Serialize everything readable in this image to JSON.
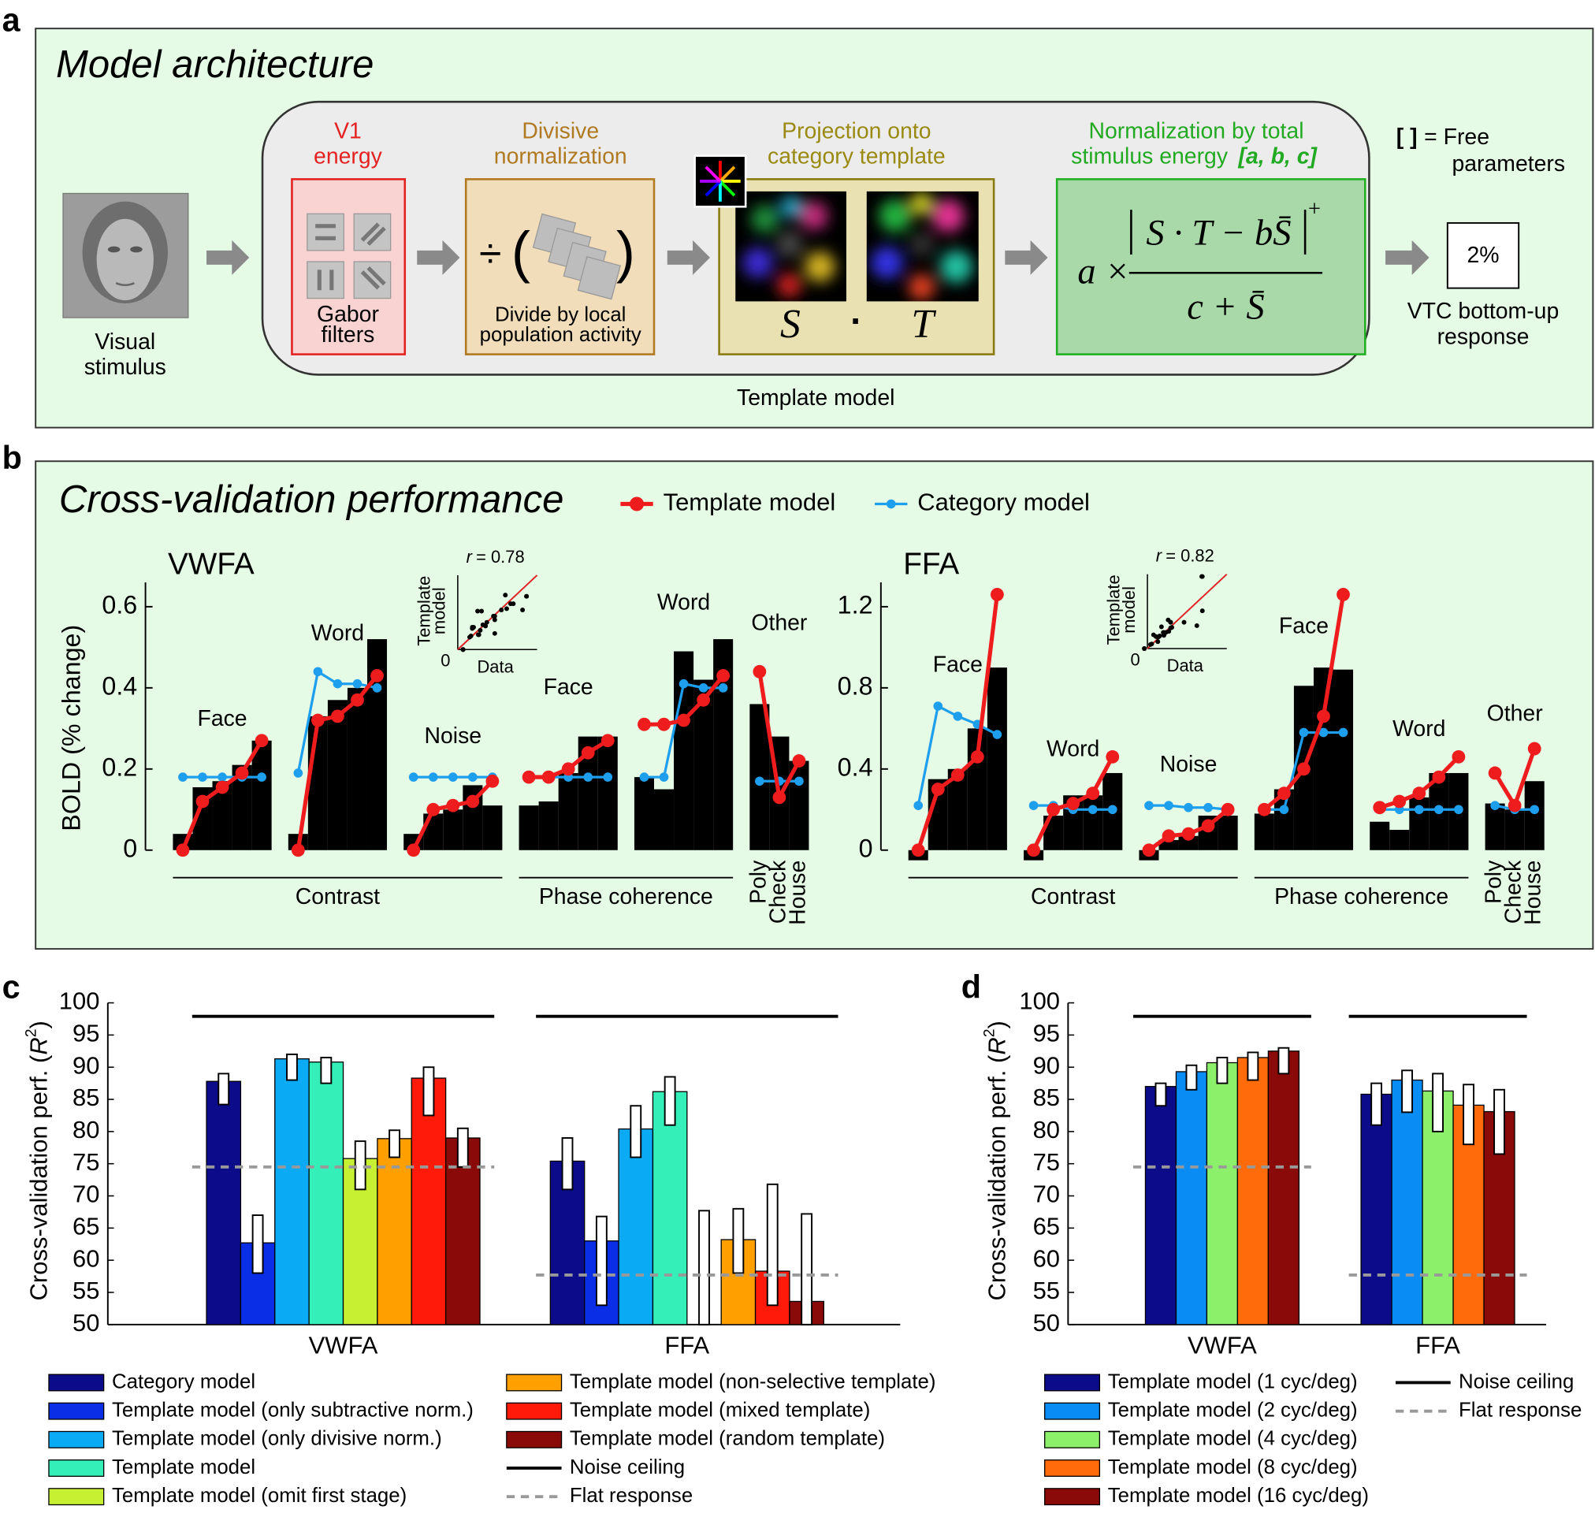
{
  "diagram": {
    "label": "a",
    "title": "Model architecture",
    "stimulus": [
      "Visual",
      "stimulus"
    ],
    "model_label": "Template model",
    "stages": [
      {
        "title": [
          "V1",
          "energy"
        ],
        "caption": [
          "Gabor",
          "filters"
        ]
      },
      {
        "title": [
          "Divisive",
          "normalization"
        ],
        "symbol": "÷",
        "open": "(",
        "close": ")",
        "caption": [
          "Divide by local",
          "population activity"
        ]
      },
      {
        "title": [
          "Projection onto",
          "category template"
        ],
        "operands": [
          "S",
          "·",
          "T"
        ]
      },
      {
        "title": [
          "Normalization by total",
          "stimulus energy"
        ],
        "params": "[a, b, c]",
        "formula": {
          "lead": "a ×",
          "numerator": "S · T − bS̄",
          "sup": "+",
          "denominator": "c + S̄"
        }
      }
    ],
    "free_params": {
      "bracket": "[ ]",
      "text": "= Free",
      "text2": "parameters"
    },
    "output": {
      "value": "2%",
      "caption": [
        "VTC bottom-up",
        "response"
      ]
    }
  },
  "panel_b": {
    "label": "b",
    "title": "Cross-validation performance",
    "legend": [
      {
        "name": "Template model",
        "color": "#ee1c1c"
      },
      {
        "name": "Category model",
        "color": "#1e9fee"
      }
    ]
  },
  "chart_data": [
    {
      "type": "bar-line",
      "title": "VWFA",
      "ylabel": "BOLD (% change)",
      "ylim": [
        0,
        0.66
      ],
      "yticks": [
        0,
        0.2,
        0.4,
        0.6
      ],
      "inset": {
        "xlim": [
          0,
          0.6
        ],
        "ylim": [
          0,
          0.6
        ],
        "xlabel": "Data",
        "ylabel": [
          "Template",
          "model"
        ],
        "origin_label": "0",
        "r_symbol": "r",
        "r_value": "= 0.78"
      },
      "conditions": [
        {
          "label": "Contrast",
          "groups": [
            {
              "label": "Face",
              "bars": [
                0.04,
                0.155,
                0.17,
                0.21,
                0.27
              ],
              "template": [
                0,
                0.12,
                0.155,
                0.19,
                0.27
              ],
              "category": [
                0.18,
                0.18,
                0.18,
                0.18,
                0.18
              ]
            },
            {
              "label": "Word",
              "bars": [
                0.04,
                0.33,
                0.37,
                0.4,
                0.52
              ],
              "template": [
                0,
                0.32,
                0.33,
                0.37,
                0.43
              ],
              "category": [
                0.19,
                0.44,
                0.41,
                0.41,
                0.4
              ]
            },
            {
              "label": "Noise",
              "bars": [
                0.04,
                0.09,
                0.1,
                0.16,
                0.11
              ],
              "template": [
                0,
                0.1,
                0.11,
                0.12,
                0.17
              ],
              "category": [
                0.18,
                0.18,
                0.18,
                0.18,
                0.18
              ]
            }
          ]
        },
        {
          "label": "Phase coherence",
          "groups": [
            {
              "label": "Face",
              "bars": [
                0.11,
                0.12,
                0.19,
                0.28,
                0.28
              ],
              "template": [
                0.18,
                0.18,
                0.2,
                0.24,
                0.27
              ],
              "category": [
                0.18,
                0.18,
                0.18,
                0.18,
                0.18
              ]
            },
            {
              "label": "Word",
              "bars": [
                0.18,
                0.15,
                0.49,
                0.42,
                0.52
              ],
              "template": [
                0.31,
                0.31,
                0.32,
                0.37,
                0.43
              ],
              "category": [
                0.18,
                0.18,
                0.41,
                0.4,
                0.4
              ]
            }
          ]
        },
        {
          "labels": [
            "Poly",
            "Check",
            "House"
          ],
          "groups": [
            {
              "label": "Other",
              "bars": [
                0.36,
                0.28,
                0.22
              ],
              "template": [
                0.44,
                0.13,
                0.22
              ],
              "category": [
                0.17,
                0.17,
                0.17
              ]
            }
          ]
        }
      ]
    },
    {
      "type": "bar-line",
      "title": "FFA",
      "ylim": [
        0,
        1.32
      ],
      "yticks": [
        0,
        0.4,
        0.8,
        1.2
      ],
      "inset": {
        "xlim": [
          0,
          1.3
        ],
        "ylim": [
          0,
          1.3
        ],
        "xlabel": "Data",
        "ylabel": [
          "Template",
          "model"
        ],
        "origin_label": "0",
        "r_symbol": "r",
        "r_value": "= 0.82"
      },
      "conditions": [
        {
          "label": "Contrast",
          "groups": [
            {
              "label": "Face",
              "bars": [
                -0.05,
                0.35,
                0.4,
                0.6,
                0.9
              ],
              "template": [
                0,
                0.3,
                0.37,
                0.46,
                1.26
              ],
              "category": [
                0.22,
                0.71,
                0.66,
                0.62,
                0.57
              ]
            },
            {
              "label": "Word",
              "bars": [
                -0.05,
                0.17,
                0.27,
                0.27,
                0.38
              ],
              "template": [
                0,
                0.2,
                0.23,
                0.28,
                0.46
              ],
              "category": [
                0.22,
                0.22,
                0.2,
                0.2,
                0.2
              ]
            },
            {
              "label": "Noise",
              "bars": [
                -0.05,
                0.05,
                0.07,
                0.17,
                0.17
              ],
              "template": [
                0,
                0.07,
                0.08,
                0.12,
                0.2
              ],
              "category": [
                0.22,
                0.22,
                0.21,
                0.21,
                0.2
              ]
            }
          ]
        },
        {
          "label": "Phase coherence",
          "groups": [
            {
              "label": "Face",
              "bars": [
                0.18,
                0.3,
                0.81,
                0.9,
                0.89
              ],
              "template": [
                0.2,
                0.28,
                0.4,
                0.66,
                1.26
              ],
              "category": [
                0.2,
                0.2,
                0.58,
                0.58,
                0.58
              ]
            },
            {
              "label": "Word",
              "bars": [
                0.14,
                0.1,
                0.26,
                0.38,
                0.38
              ],
              "template": [
                0.21,
                0.24,
                0.28,
                0.36,
                0.46
              ],
              "category": [
                0.2,
                0.2,
                0.2,
                0.2,
                0.2
              ]
            }
          ]
        },
        {
          "labels": [
            "Poly",
            "Check",
            "House"
          ],
          "groups": [
            {
              "label": "Other",
              "bars": [
                0.23,
                0.2,
                0.34
              ],
              "template": [
                0.38,
                0.22,
                0.5
              ],
              "category": [
                0.22,
                0.2,
                0.2
              ]
            }
          ]
        }
      ]
    },
    {
      "type": "bar",
      "panel_label": "c",
      "ylabel": {
        "text": "Cross-validation perf. (",
        "symbol": "R",
        "sup": "2",
        "close": ")"
      },
      "ylim": [
        50,
        100
      ],
      "yticks": [
        50,
        55,
        60,
        65,
        70,
        75,
        80,
        85,
        90,
        95,
        100
      ],
      "categories": [
        "VWFA",
        "FFA"
      ],
      "series": [
        {
          "name": "Category model",
          "color": "#0c0c8a",
          "values": [
            87.8,
            75.4
          ],
          "intervals": [
            [
              84.2,
              89
            ],
            [
              71,
              79
            ]
          ]
        },
        {
          "name": "Template model (only subtractive norm.)",
          "color": "#0a2ee6",
          "values": [
            62.7,
            63.0
          ],
          "intervals": [
            [
              58,
              67
            ],
            [
              53,
              66.8
            ]
          ]
        },
        {
          "name": "Template model (only divisive norm.)",
          "color": "#0aaaf5",
          "values": [
            91.3,
            80.4
          ],
          "intervals": [
            [
              88,
              92
            ],
            [
              76,
              84
            ]
          ]
        },
        {
          "name": "Template model",
          "color": "#34f0b8",
          "values": [
            90.8,
            86.2
          ],
          "intervals": [
            [
              87.5,
              91.5
            ],
            [
              81,
              88.5
            ]
          ]
        },
        {
          "name": "Template model (omit first stage)",
          "color": "#c8f032",
          "values": [
            75.8,
            null
          ],
          "intervals": [
            [
              71,
              78.5
            ],
            [
              50,
              67.7
            ]
          ]
        },
        {
          "name": "Template model (non-selective template)",
          "color": "#ffa000",
          "values": [
            78.9,
            63.2
          ],
          "intervals": [
            [
              76,
              80.2
            ],
            [
              58,
              68
            ]
          ]
        },
        {
          "name": "Template model (mixed template)",
          "color": "#ff1a0a",
          "values": [
            88.3,
            58.3
          ],
          "intervals": [
            [
              82.5,
              90
            ],
            [
              53,
              71.8
            ]
          ]
        },
        {
          "name": "Template model (random template)",
          "color": "#8a0a0a",
          "values": [
            79.0,
            53.6
          ],
          "intervals": [
            [
              74.5,
              80.5
            ],
            [
              50,
              67.2
            ]
          ]
        }
      ],
      "noise_ceiling": {
        "name": "Noise ceiling",
        "values": [
          97.9,
          97.9
        ]
      },
      "flat_response": {
        "name": "Flat response",
        "values": [
          74.5,
          57.7
        ]
      }
    },
    {
      "type": "bar",
      "panel_label": "d",
      "ylabel": {
        "text": "Cross-validation perf. (",
        "symbol": "R",
        "sup": "2",
        "close": ")"
      },
      "ylim": [
        50,
        100
      ],
      "yticks": [
        50,
        55,
        60,
        65,
        70,
        75,
        80,
        85,
        90,
        95,
        100
      ],
      "categories": [
        "VWFA",
        "FFA"
      ],
      "series": [
        {
          "name": "Template model (1 cyc/deg)",
          "color": "#0c0c8a",
          "values": [
            87.0,
            85.8
          ],
          "intervals": [
            [
              84,
              87.5
            ],
            [
              81,
              87.5
            ]
          ]
        },
        {
          "name": "Template model (2 cyc/deg)",
          "color": "#0a8cf5",
          "values": [
            89.3,
            88.0
          ],
          "intervals": [
            [
              86.5,
              90.3
            ],
            [
              83,
              89.5
            ]
          ]
        },
        {
          "name": "Template model (4 cyc/deg)",
          "color": "#8cf06a",
          "values": [
            90.7,
            86.3
          ],
          "intervals": [
            [
              87.5,
              91.5
            ],
            [
              80,
              89
            ]
          ]
        },
        {
          "name": "Template model (8 cyc/deg)",
          "color": "#ff6a0a",
          "values": [
            91.5,
            84.1
          ],
          "intervals": [
            [
              88,
              92.3
            ],
            [
              78,
              87.3
            ]
          ]
        },
        {
          "name": "Template model (16 cyc/deg)",
          "color": "#8a0a0a",
          "values": [
            92.5,
            83.1
          ],
          "intervals": [
            [
              89,
              93
            ],
            [
              76.5,
              86.5
            ]
          ]
        }
      ],
      "noise_ceiling": {
        "name": "Noise ceiling",
        "values": [
          97.9,
          97.9
        ]
      },
      "flat_response": {
        "name": "Flat response",
        "values": [
          74.5,
          57.7
        ]
      }
    }
  ]
}
